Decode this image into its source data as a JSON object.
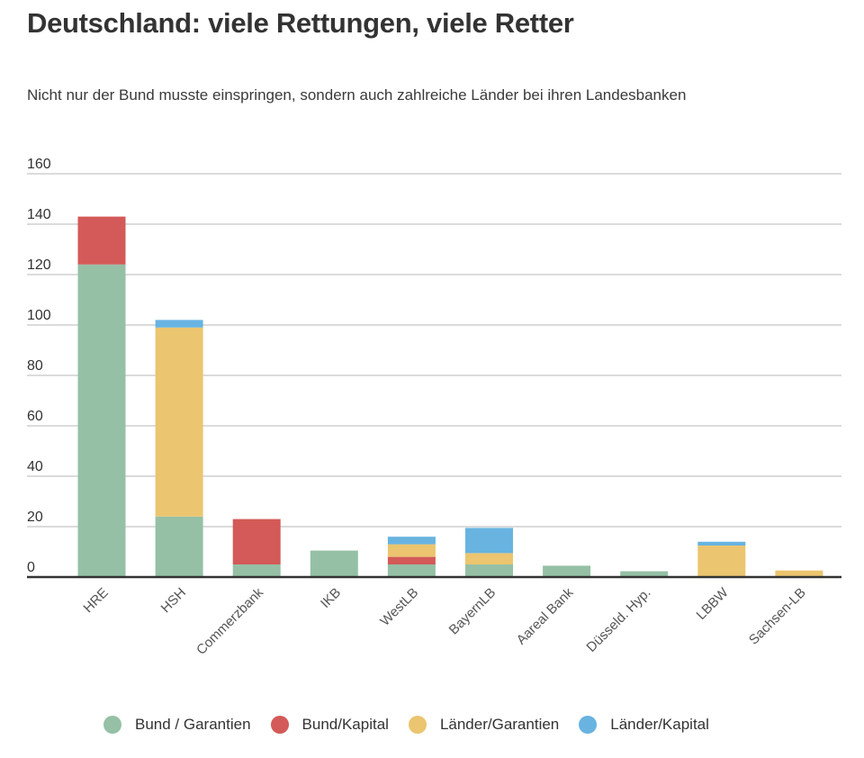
{
  "chart_data": {
    "type": "bar",
    "stacked": true,
    "title": "Deutschland: viele Rettungen, viele Retter",
    "subtitle": "Nicht nur der Bund musste einspringen, sondern auch zahlreiche Länder bei ihren Landesbanken",
    "xlabel": "",
    "ylabel": "",
    "ylim": [
      0,
      160
    ],
    "yticks": [
      0,
      20,
      40,
      60,
      80,
      100,
      120,
      140,
      160
    ],
    "grid": true,
    "legend_position": "bottom",
    "categories": [
      "HRE",
      "HSH",
      "Commerzbank",
      "IKB",
      "WestLB",
      "BayernLB",
      "Aareal Bank",
      "Düsseld. Hyp.",
      "LBBW",
      "Sachsen-LB"
    ],
    "series": [
      {
        "name": "Bund / Garantien",
        "color": "#95c0a6",
        "values": [
          124,
          24,
          5,
          10.5,
          5,
          5,
          4.5,
          2.3,
          0,
          0
        ]
      },
      {
        "name": "Bund/Kapital",
        "color": "#d35a58",
        "values": [
          19,
          0,
          18,
          0,
          3,
          0,
          0,
          0,
          0,
          0
        ]
      },
      {
        "name": "Länder/Garantien",
        "color": "#ebc56f",
        "values": [
          0,
          75,
          0,
          0,
          5,
          4.5,
          0,
          0,
          12.5,
          2.6
        ]
      },
      {
        "name": "Länder/Kapital",
        "color": "#68b3e0",
        "values": [
          0,
          3,
          0,
          0,
          3,
          10,
          0,
          0,
          1.5,
          0
        ]
      }
    ]
  }
}
